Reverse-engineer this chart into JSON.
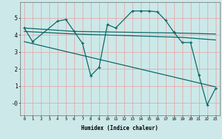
{
  "xlabel": "Humidex (Indice chaleur)",
  "bg_color": "#cce8e8",
  "grid_color": "#ee9999",
  "line_color": "#006666",
  "xlim": [
    -0.5,
    23.5
  ],
  "ylim": [
    -0.7,
    5.9
  ],
  "yticks": [
    0,
    1,
    2,
    3,
    4,
    5
  ],
  "ytick_labels": [
    "-0",
    "1",
    "2",
    "3",
    "4",
    "5"
  ],
  "xticks": [
    0,
    1,
    2,
    3,
    4,
    5,
    6,
    7,
    8,
    9,
    10,
    11,
    12,
    13,
    14,
    15,
    16,
    17,
    18,
    19,
    20,
    21,
    22,
    23
  ],
  "line1_x": [
    0,
    1,
    4,
    5,
    6,
    7,
    8,
    9,
    10,
    11,
    13,
    14,
    15,
    16,
    17,
    18,
    19,
    20,
    21,
    22,
    23
  ],
  "line1_y": [
    4.4,
    3.6,
    4.8,
    4.9,
    4.2,
    3.5,
    1.6,
    2.1,
    4.6,
    4.4,
    5.4,
    5.4,
    5.4,
    5.35,
    4.85,
    4.15,
    3.55,
    3.55,
    1.65,
    -0.1,
    0.85
  ],
  "line2_x": [
    0,
    6,
    19,
    23
  ],
  "line2_y": [
    4.4,
    4.2,
    4.1,
    4.05
  ],
  "line3_x": [
    0,
    6,
    19,
    23
  ],
  "line3_y": [
    4.2,
    4.05,
    3.85,
    3.7
  ],
  "line4_x": [
    0,
    23
  ],
  "line4_y": [
    3.6,
    0.95
  ]
}
